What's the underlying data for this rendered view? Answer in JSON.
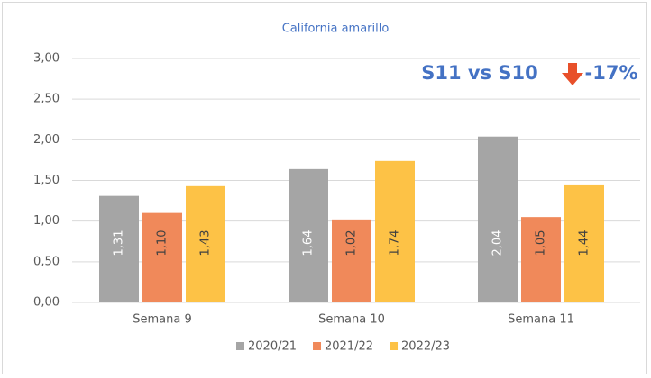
{
  "chart_data": {
    "type": "bar",
    "title": "California amarillo",
    "categories": [
      "Semana 9",
      "Semana 10",
      "Semana 11"
    ],
    "series": [
      {
        "name": "2020/21",
        "color": "#a5a5a5",
        "values": [
          1.31,
          1.64,
          2.04
        ],
        "value_labels": [
          "1,31",
          "1,64",
          "2,04"
        ]
      },
      {
        "name": "2021/22",
        "color": "#f0895a",
        "values": [
          1.1,
          1.02,
          1.05
        ],
        "value_labels": [
          "1,10",
          "1,02",
          "1,05"
        ]
      },
      {
        "name": "2022/23",
        "color": "#fdc246",
        "values": [
          1.43,
          1.74,
          1.44
        ],
        "value_labels": [
          "1,43",
          "1,74",
          "1,44"
        ]
      }
    ],
    "ylim": [
      0,
      3
    ],
    "yticks": [
      {
        "value": 0,
        "label": "0,00"
      },
      {
        "value": 0.5,
        "label": "0,50"
      },
      {
        "value": 1,
        "label": "1,00"
      },
      {
        "value": 1.5,
        "label": "1,50"
      },
      {
        "value": 2,
        "label": "2,00"
      },
      {
        "value": 2.5,
        "label": "2,50"
      },
      {
        "value": 3,
        "label": "3,00"
      }
    ],
    "grid": true,
    "legend": "bottom",
    "annotation": {
      "text": "S11 vs S10",
      "change": "-17%",
      "color": "#4472c4",
      "arrow_color": "#e8502a"
    }
  }
}
